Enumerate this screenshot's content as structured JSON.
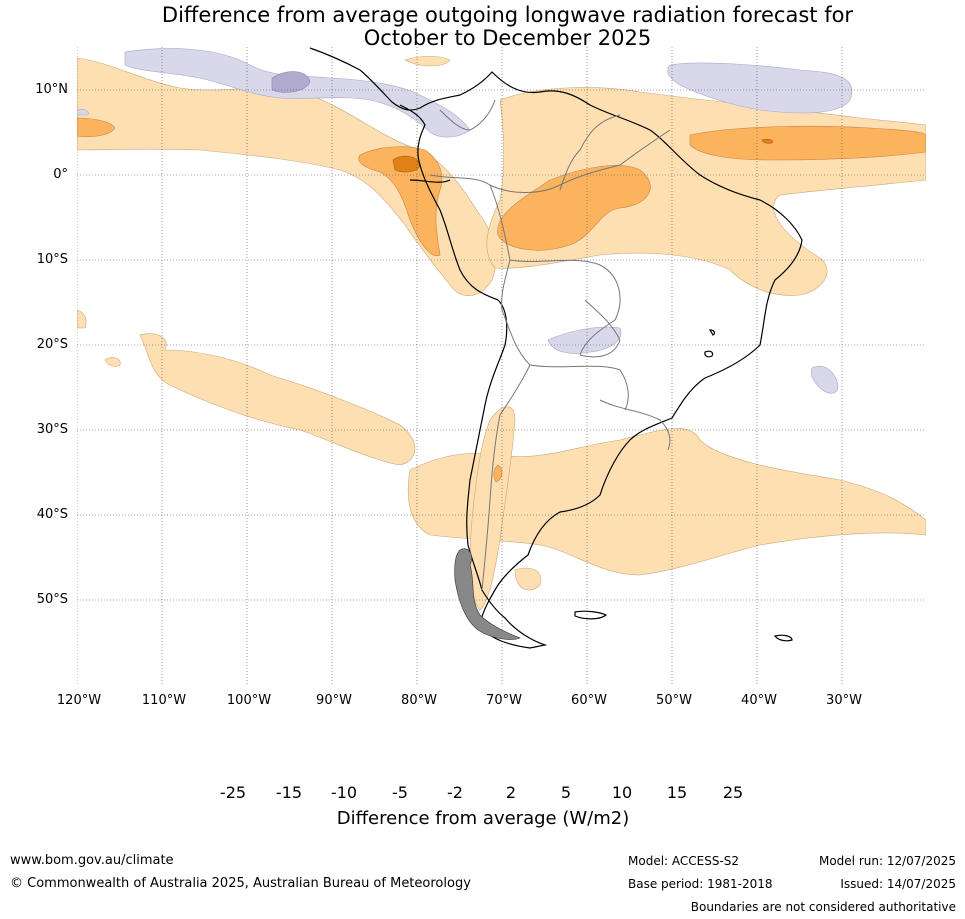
{
  "title": {
    "line1": "Difference from average outgoing longwave radiation forecast for",
    "line2": "October to December 2025"
  },
  "map": {
    "region": "South America",
    "lat_labels": [
      "10°N",
      "0°",
      "10°S",
      "20°S",
      "30°S",
      "40°S",
      "50°S"
    ],
    "lon_labels": [
      "120°W",
      "110°W",
      "100°W",
      "90°W",
      "80°W",
      "70°W",
      "60°W",
      "50°W",
      "40°W",
      "30°W"
    ],
    "gridlines": "dotted"
  },
  "legend": {
    "ticks": [
      "-25",
      "-15",
      "-10",
      "-5",
      "-2",
      "2",
      "5",
      "10",
      "15",
      "25"
    ],
    "colors": {
      "lt_-25": "#2d0a4b",
      "-25_-15": "#5a2a8a",
      "-15_-10": "#8574ad",
      "-10_-5": "#b1aacf",
      "-5_-2": "#d8d8ea",
      "-2_2": "#ffffff",
      "2_5": "#fddfb2",
      "5_10": "#fbb45d",
      "10_15": "#e08216",
      "15_25": "#b0570b",
      "gt_25": "#7a3a09"
    },
    "title": "Difference from average (W/m2)"
  },
  "footer": {
    "website": "www.bom.gov.au/climate",
    "copyright": "© Commonwealth of Australia 2025, Australian Bureau of Meteorology",
    "model": "Model: ACCESS-S2",
    "base_period": "Base period: 1981-2018",
    "model_run": "Model run: 12/07/2025",
    "issued": "Issued: 14/07/2025",
    "disclaimer": "Boundaries are not considered authoritative"
  }
}
